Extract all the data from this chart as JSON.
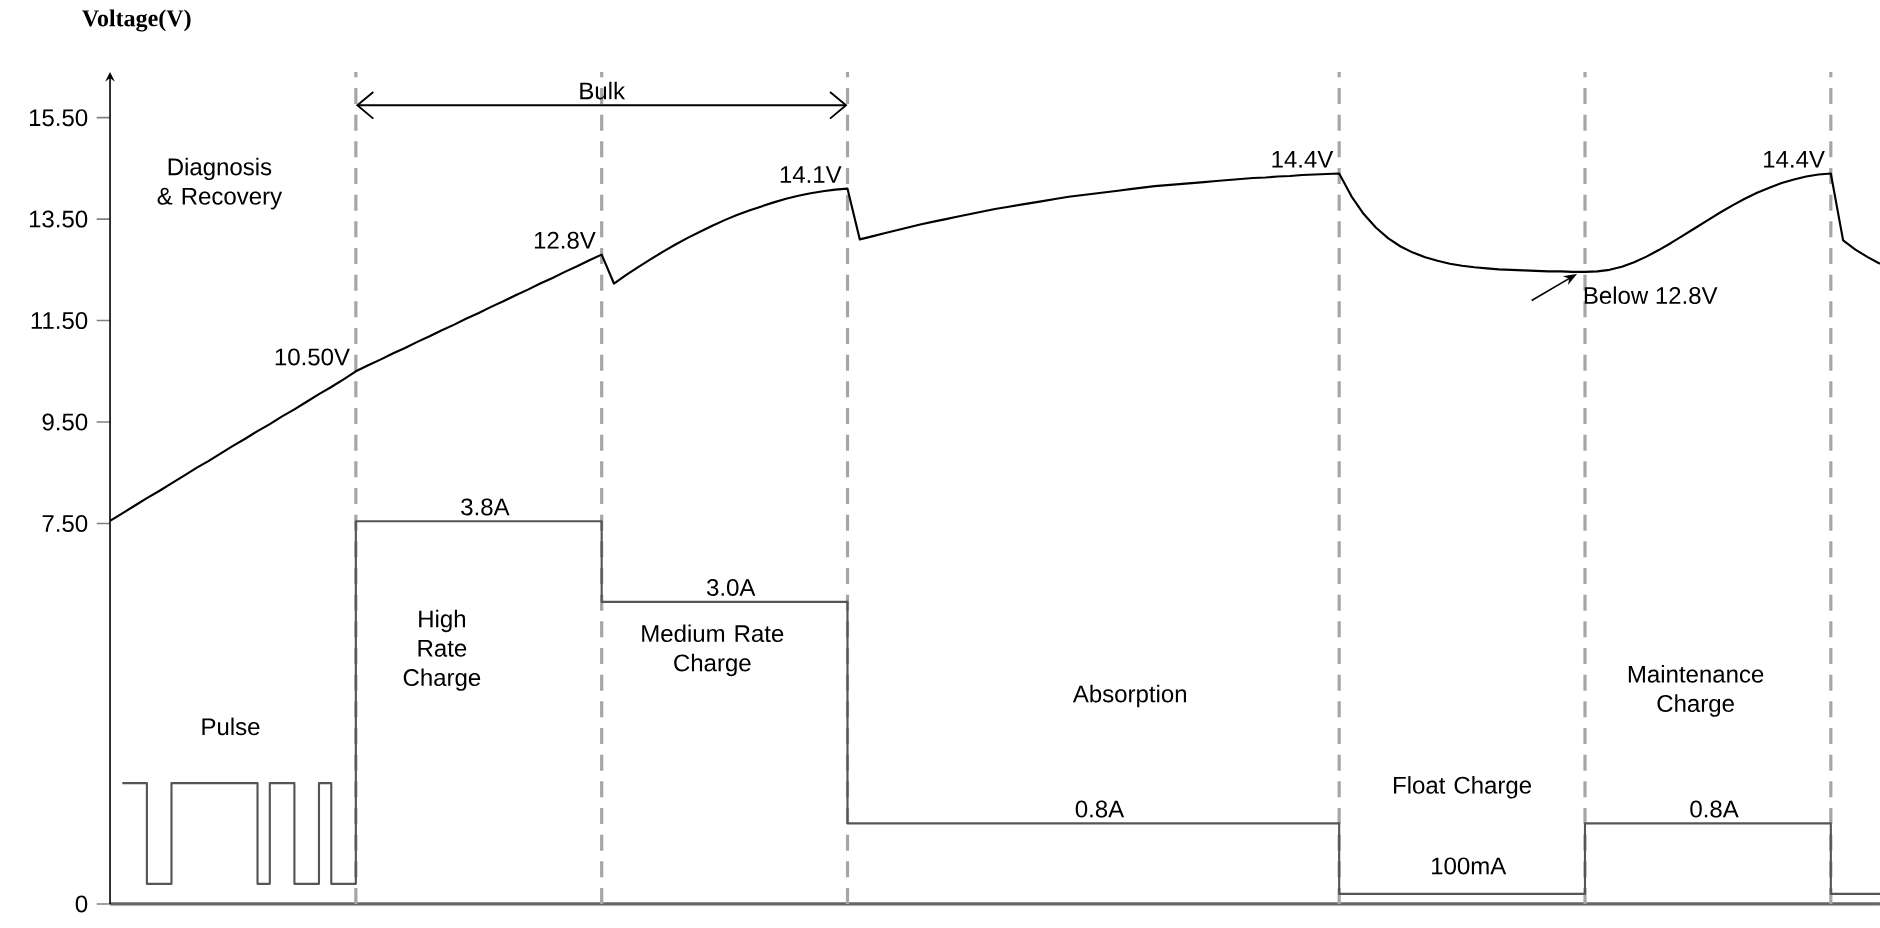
{
  "chart_data": {
    "type": "line",
    "ylabel": "Voltage(V)",
    "categories": [
      null,
      null,
      null,
      null,
      null,
      null,
      null,
      null,
      null,
      null,
      null,
      null,
      null,
      null,
      null,
      null,
      null,
      null,
      null,
      null,
      null,
      null,
      null,
      null,
      null,
      null,
      null,
      null,
      null,
      null,
      null,
      null,
      null,
      null,
      null,
      null,
      null,
      null,
      null,
      null,
      null,
      null,
      null,
      null,
      null,
      null,
      null,
      null,
      null,
      null,
      null,
      null,
      null,
      null,
      null,
      null,
      null,
      null,
      null,
      null,
      null,
      null,
      null,
      null,
      null,
      null,
      null,
      null,
      null,
      null,
      null,
      null,
      null,
      null,
      null,
      null,
      null,
      null,
      null,
      null,
      null,
      null,
      null,
      null,
      null,
      null,
      null,
      null,
      null,
      null,
      null,
      null,
      null,
      null,
      null,
      null,
      null,
      null,
      null,
      null,
      null,
      null,
      null,
      null,
      null,
      null,
      null,
      null,
      null,
      null,
      null,
      null,
      null,
      null,
      null,
      null,
      null,
      null,
      null,
      null,
      null,
      null,
      null,
      null,
      null,
      null,
      null,
      null,
      null,
      null,
      null,
      null,
      null,
      null,
      null,
      null,
      null,
      null,
      null,
      null,
      null,
      null,
      null,
      null,
      null
    ],
    "ylim": [
      0,
      16.4
    ],
    "yticks": [
      0,
      {
        "value": 7.5,
        "label": "7.50"
      },
      {
        "value": 9.5,
        "label": "9.50"
      },
      {
        "value": 11.5,
        "label": "11.50"
      },
      {
        "value": 13.5,
        "label": "13.50"
      },
      {
        "value": 15.5,
        "label": "15.50"
      }
    ],
    "tick_labels": "y",
    "grid": false,
    "marker": "none",
    "line_style": "solid",
    "series": [
      {
        "color": "#000000",
        "values": [
          7.55,
          7.7,
          7.85,
          8.0,
          8.14,
          8.29,
          8.44,
          8.59,
          8.73,
          8.88,
          9.03,
          9.17,
          9.32,
          9.46,
          9.61,
          9.75,
          9.9,
          10.05,
          10.19,
          10.34,
          10.5,
          10.62,
          10.73,
          10.85,
          10.96,
          11.08,
          11.19,
          11.31,
          11.42,
          11.54,
          11.65,
          11.77,
          11.88,
          12.0,
          12.11,
          12.23,
          12.34,
          12.46,
          12.57,
          12.69,
          12.8,
          12.23,
          12.4,
          12.56,
          12.71,
          12.86,
          13.0,
          13.13,
          13.25,
          13.37,
          13.48,
          13.58,
          13.67,
          13.75,
          13.83,
          13.9,
          13.96,
          14.01,
          14.05,
          14.08,
          14.1,
          13.1,
          13.16,
          13.22,
          13.28,
          13.34,
          13.4,
          13.45,
          13.5,
          13.55,
          13.6,
          13.65,
          13.7,
          13.74,
          13.78,
          13.82,
          13.86,
          13.9,
          13.94,
          13.97,
          14.0,
          14.03,
          14.06,
          14.09,
          14.12,
          14.15,
          14.17,
          14.19,
          14.21,
          14.23,
          14.25,
          14.27,
          14.29,
          14.31,
          14.32,
          14.34,
          14.35,
          14.37,
          14.38,
          14.39,
          14.4,
          13.95,
          13.6,
          13.33,
          13.12,
          12.96,
          12.84,
          12.75,
          12.68,
          12.62,
          12.58,
          12.55,
          12.53,
          12.51,
          12.5,
          12.49,
          12.48,
          12.47,
          12.47,
          12.46,
          12.46,
          12.47,
          12.5,
          12.56,
          12.65,
          12.76,
          12.89,
          13.03,
          13.18,
          13.33,
          13.48,
          13.63,
          13.77,
          13.9,
          14.02,
          14.12,
          14.21,
          14.28,
          14.34,
          14.38,
          14.4,
          13.08,
          12.9,
          12.75,
          12.62
        ],
        "value_labels": [
          null,
          null,
          null,
          null,
          null,
          null,
          null,
          null,
          null,
          null,
          null,
          null,
          null,
          null,
          null,
          null,
          null,
          null,
          null,
          null,
          "10.50V",
          null,
          null,
          null,
          null,
          null,
          null,
          null,
          null,
          null,
          null,
          null,
          null,
          null,
          null,
          null,
          null,
          null,
          null,
          null,
          "12.8V",
          null,
          null,
          null,
          null,
          null,
          null,
          null,
          null,
          null,
          null,
          null,
          null,
          null,
          null,
          null,
          null,
          null,
          null,
          null,
          "14.1V",
          null,
          null,
          null,
          null,
          null,
          null,
          null,
          null,
          null,
          null,
          null,
          null,
          null,
          null,
          null,
          null,
          null,
          null,
          null,
          null,
          null,
          null,
          null,
          null,
          null,
          null,
          null,
          null,
          null,
          null,
          null,
          null,
          null,
          null,
          null,
          null,
          null,
          null,
          null,
          "14.4V",
          null,
          null,
          null,
          null,
          null,
          null,
          null,
          null,
          null,
          null,
          null,
          null,
          null,
          null,
          null,
          null,
          null,
          null,
          null,
          null,
          null,
          null,
          null,
          null,
          null,
          null,
          null,
          null,
          null,
          null,
          null,
          null,
          null,
          null,
          null,
          null,
          null,
          null,
          null,
          "14.4V",
          null,
          null,
          null,
          null
        ]
      },
      {
        "type": "step",
        "axis": "y2",
        "color": "#555555",
        "values": [
          null,
          1.2,
          1.2,
          0.2,
          0.2,
          1.2,
          1.2,
          1.2,
          1.2,
          1.2,
          1.2,
          1.2,
          0.2,
          1.2,
          1.2,
          0.2,
          0.2,
          1.2,
          0.2,
          0.2,
          3.8,
          3.8,
          3.8,
          3.8,
          3.8,
          3.8,
          3.8,
          3.8,
          3.8,
          3.8,
          3.8,
          3.8,
          3.8,
          3.8,
          3.8,
          3.8,
          3.8,
          3.8,
          3.8,
          3.8,
          3.0,
          3.0,
          3.0,
          3.0,
          3.0,
          3.0,
          3.0,
          3.0,
          3.0,
          3.0,
          3.0,
          3.0,
          3.0,
          3.0,
          3.0,
          3.0,
          3.0,
          3.0,
          3.0,
          3.0,
          0.8,
          0.8,
          0.8,
          0.8,
          0.8,
          0.8,
          0.8,
          0.8,
          0.8,
          0.8,
          0.8,
          0.8,
          0.8,
          0.8,
          0.8,
          0.8,
          0.8,
          0.8,
          0.8,
          0.8,
          0.8,
          0.8,
          0.8,
          0.8,
          0.8,
          0.8,
          0.8,
          0.8,
          0.8,
          0.8,
          0.8,
          0.8,
          0.8,
          0.8,
          0.8,
          0.8,
          0.8,
          0.8,
          0.8,
          0.8,
          0.1,
          0.1,
          0.1,
          0.1,
          0.1,
          0.1,
          0.1,
          0.1,
          0.1,
          0.1,
          0.1,
          0.1,
          0.1,
          0.1,
          0.1,
          0.1,
          0.1,
          0.1,
          0.1,
          0.1,
          0.8,
          0.8,
          0.8,
          0.8,
          0.8,
          0.8,
          0.8,
          0.8,
          0.8,
          0.8,
          0.8,
          0.8,
          0.8,
          0.8,
          0.8,
          0.8,
          0.8,
          0.8,
          0.8,
          0.8,
          0.1,
          0.1,
          0.1,
          0.1,
          0.1
        ],
        "value_labels": [
          null,
          null,
          null,
          null,
          null,
          null,
          null,
          null,
          null,
          null,
          null,
          null,
          null,
          null,
          null,
          null,
          null,
          null,
          null,
          null,
          null,
          null,
          null,
          null,
          null,
          null,
          null,
          null,
          null,
          null,
          "3.8A",
          null,
          null,
          null,
          null,
          null,
          null,
          null,
          null,
          null,
          null,
          null,
          null,
          null,
          null,
          null,
          null,
          null,
          null,
          null,
          "3.0A",
          null,
          null,
          null,
          null,
          null,
          null,
          null,
          null,
          null,
          null,
          null,
          null,
          null,
          null,
          null,
          null,
          null,
          null,
          null,
          null,
          null,
          null,
          null,
          null,
          null,
          null,
          null,
          null,
          null,
          "0.8A",
          null,
          null,
          null,
          null,
          null,
          null,
          null,
          null,
          null,
          null,
          null,
          null,
          null,
          null,
          null,
          null,
          null,
          null,
          null,
          null,
          null,
          null,
          null,
          null,
          null,
          null,
          null,
          null,
          null,
          null,
          null,
          null,
          null,
          null,
          null,
          null,
          null,
          null,
          null,
          null,
          null,
          null,
          null,
          null,
          null,
          null,
          null,
          null,
          null,
          "0.8A",
          null,
          null,
          null,
          null,
          null,
          null,
          null,
          null,
          null,
          null,
          null,
          null,
          null,
          null
        ]
      }
    ],
    "annotations": [
      "Bulk",
      "Diagnosis & Recovery",
      "Pulse",
      "High Rate Charge",
      "Medium Rate Charge",
      "Absorption",
      "Float Charge",
      "Maintenance Charge",
      "Below 12.8V",
      "100mA"
    ]
  }
}
